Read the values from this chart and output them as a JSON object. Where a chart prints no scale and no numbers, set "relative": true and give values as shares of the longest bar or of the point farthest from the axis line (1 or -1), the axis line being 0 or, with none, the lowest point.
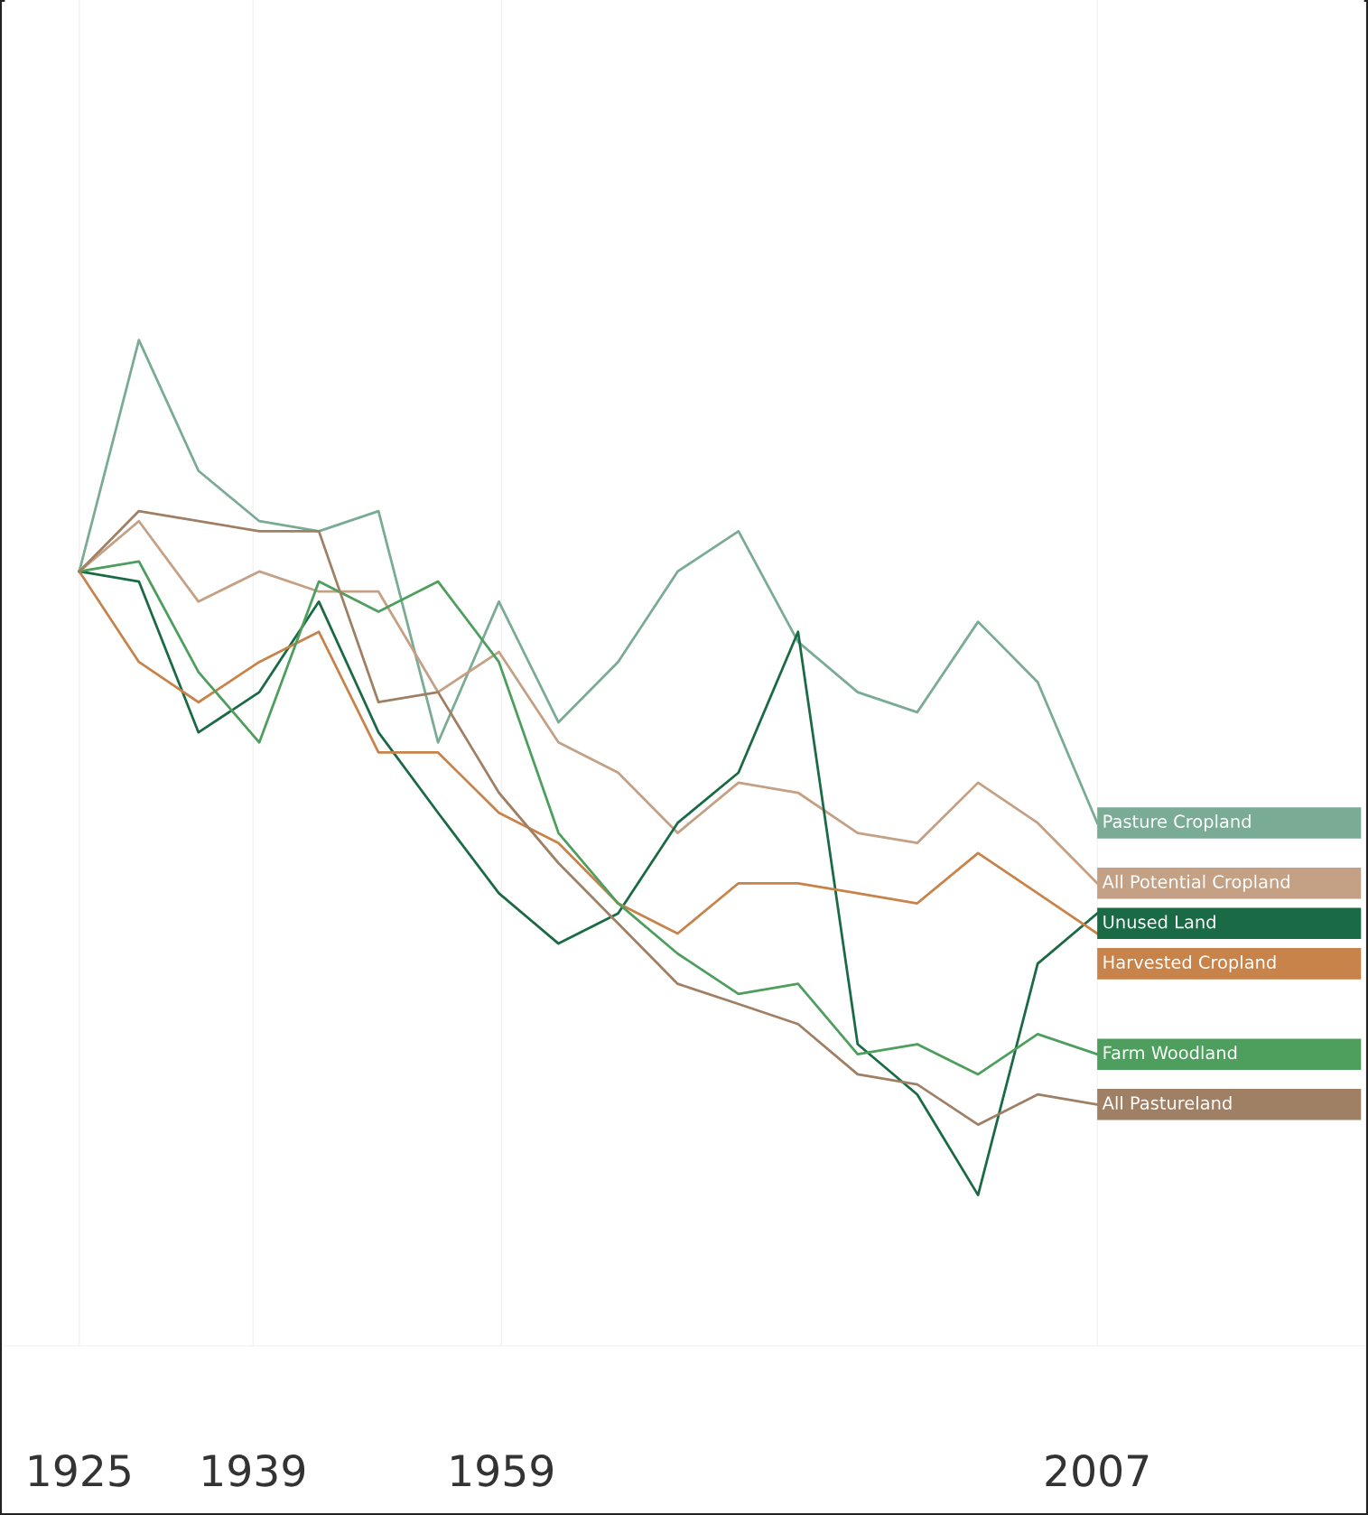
{
  "chart_data": {
    "type": "line",
    "relative": true,
    "x": [
      1925.0,
      1929.8,
      1934.6,
      1939.5,
      1944.3,
      1949.1,
      1953.9,
      1958.8,
      1963.6,
      1968.4,
      1973.2,
      1978.1,
      1982.9,
      1987.7,
      1992.5,
      1997.4,
      2002.2,
      2007.0
    ],
    "xlim": [
      1919.0,
      2028.5
    ],
    "xticks": [
      1925,
      1939,
      1959,
      2007
    ],
    "grid": "x",
    "legend": false,
    "marker": "none",
    "line_style": "solid",
    "series": [
      {
        "name": "Pasture Cropland",
        "color": "#7aab94",
        "values": [
          0.77,
          1.0,
          0.87,
          0.82,
          0.81,
          0.83,
          0.6,
          0.74,
          0.62,
          0.68,
          0.77,
          0.81,
          0.7,
          0.65,
          0.63,
          0.72,
          0.66,
          0.52
        ]
      },
      {
        "name": "All Potential Cropland",
        "color": "#c4a085",
        "values": [
          0.77,
          0.82,
          0.74,
          0.77,
          0.75,
          0.75,
          0.65,
          0.69,
          0.6,
          0.57,
          0.51,
          0.56,
          0.55,
          0.51,
          0.5,
          0.56,
          0.52,
          0.46
        ]
      },
      {
        "name": "Unused Land",
        "color": "#1a6b45",
        "values": [
          0.77,
          0.76,
          0.61,
          0.65,
          0.74,
          0.61,
          0.53,
          0.45,
          0.4,
          0.43,
          0.52,
          0.57,
          0.71,
          0.3,
          0.25,
          0.15,
          0.38,
          0.43
        ]
      },
      {
        "name": "Harvested Cropland",
        "color": "#c8834a",
        "values": [
          0.77,
          0.68,
          0.64,
          0.68,
          0.71,
          0.59,
          0.59,
          0.53,
          0.5,
          0.44,
          0.41,
          0.46,
          0.46,
          0.45,
          0.44,
          0.49,
          0.45,
          0.41
        ]
      },
      {
        "name": "Farm Woodland",
        "color": "#4e9e5e",
        "values": [
          0.77,
          0.78,
          0.67,
          0.6,
          0.76,
          0.73,
          0.76,
          0.68,
          0.51,
          0.44,
          0.39,
          0.35,
          0.36,
          0.29,
          0.3,
          0.27,
          0.31,
          0.29
        ]
      },
      {
        "name": "All Pastureland",
        "color": "#a08064",
        "values": [
          0.77,
          0.83,
          0.82,
          0.81,
          0.81,
          0.64,
          0.65,
          0.55,
          0.48,
          0.42,
          0.36,
          0.34,
          0.32,
          0.27,
          0.26,
          0.22,
          0.25,
          0.24
        ]
      }
    ]
  }
}
